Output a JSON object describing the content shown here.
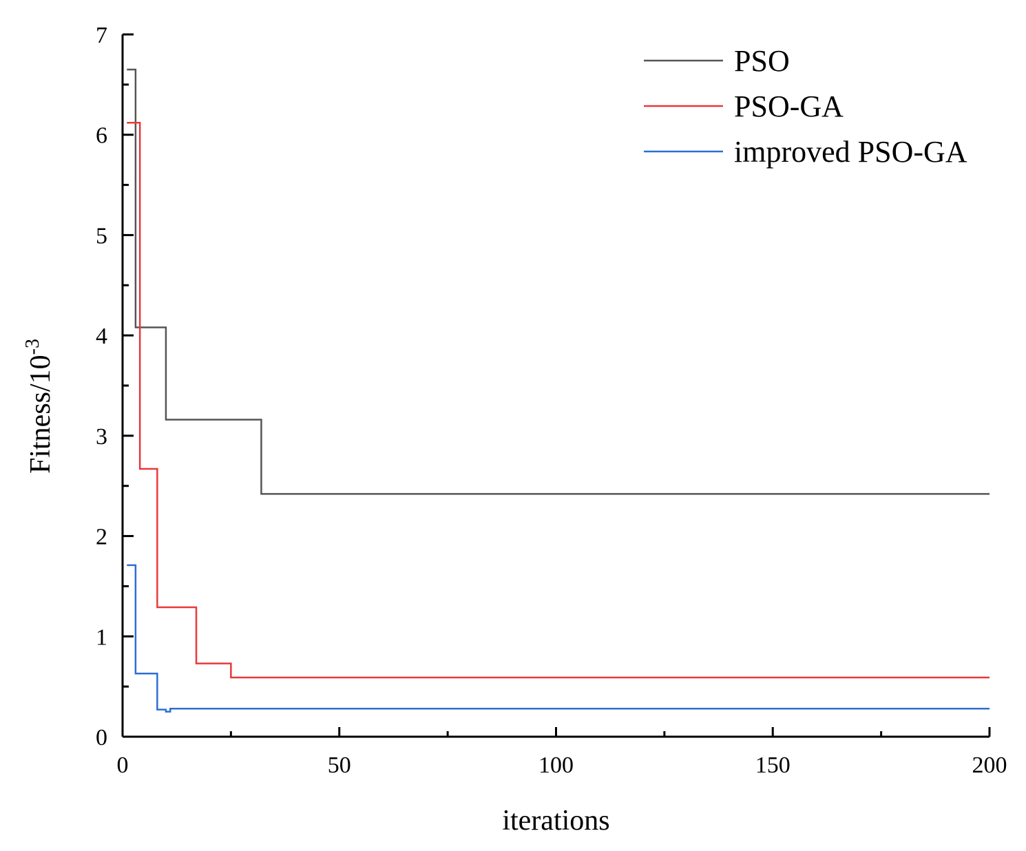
{
  "chart_data": {
    "type": "line",
    "title": "",
    "xlabel": "iterations",
    "ylabel": "Fitness/10",
    "ylabel_exponent": "-3",
    "xlim": [
      0,
      200
    ],
    "ylim": [
      0,
      7
    ],
    "x_ticks": [
      0,
      50,
      100,
      150,
      200
    ],
    "y_ticks": [
      0,
      1,
      2,
      3,
      4,
      5,
      6,
      7
    ],
    "x_tick_labels": [
      "0",
      "50",
      "100",
      "150",
      "200"
    ],
    "y_tick_labels": [
      "0",
      "1",
      "2",
      "3",
      "4",
      "5",
      "6",
      "7"
    ],
    "grid": false,
    "legend_position": "top-right",
    "series": [
      {
        "name": "PSO",
        "color": "#555555",
        "step": true,
        "points": [
          [
            1,
            6.65
          ],
          [
            3,
            4.08
          ],
          [
            10,
            3.16
          ],
          [
            32,
            2.42
          ],
          [
            200,
            2.42
          ]
        ]
      },
      {
        "name": "PSO-GA",
        "color": "#e8393a",
        "step": true,
        "points": [
          [
            1,
            6.12
          ],
          [
            4,
            2.67
          ],
          [
            8,
            1.29
          ],
          [
            17,
            0.73
          ],
          [
            25,
            0.59
          ],
          [
            200,
            0.59
          ]
        ]
      },
      {
        "name": "improved PSO-GA",
        "color": "#2b6fd1",
        "step": true,
        "points": [
          [
            1,
            1.71
          ],
          [
            3,
            0.63
          ],
          [
            8,
            0.27
          ],
          [
            10,
            0.25
          ],
          [
            11,
            0.28
          ],
          [
            200,
            0.28
          ]
        ]
      }
    ]
  }
}
